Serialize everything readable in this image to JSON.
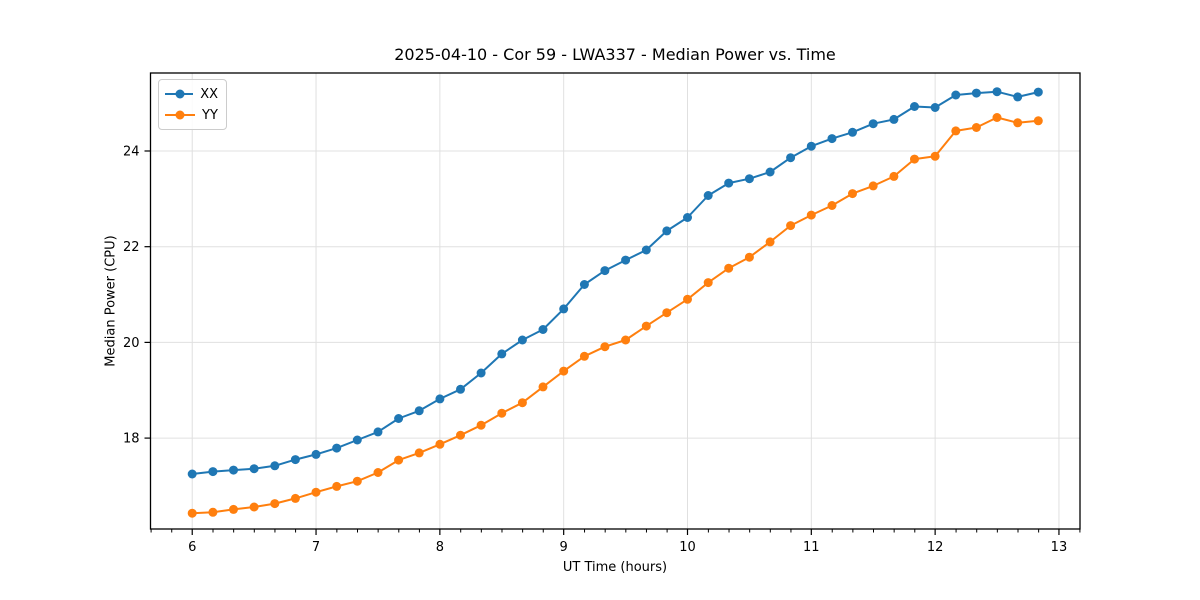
{
  "chart_data": {
    "type": "line",
    "title": "2025-04-10 - Cor 59 - LWA337 - Median Power vs. Time",
    "xlabel": "UT Time (hours)",
    "ylabel": "Median Power (CPU)",
    "xlim": [
      5.663,
      13.17
    ],
    "ylim": [
      16.1,
      25.63
    ],
    "xticks": [
      6,
      7,
      8,
      9,
      10,
      11,
      12,
      13
    ],
    "yticks": [
      18,
      20,
      22,
      24
    ],
    "x_minor_interval": 0.1667,
    "grid": true,
    "grid_color": "#e0e0e0",
    "axis_color": "#000000",
    "background_color": "#ffffff",
    "legend_position": "upper-left",
    "marker": "circle",
    "x": [
      6.0,
      6.167,
      6.333,
      6.5,
      6.667,
      6.833,
      7.0,
      7.167,
      7.333,
      7.5,
      7.667,
      7.833,
      8.0,
      8.167,
      8.333,
      8.5,
      8.667,
      8.833,
      9.0,
      9.167,
      9.333,
      9.5,
      9.667,
      9.833,
      10.0,
      10.167,
      10.333,
      10.5,
      10.667,
      10.833,
      11.0,
      11.167,
      11.333,
      11.5,
      11.667,
      11.833,
      12.0,
      12.167,
      12.333,
      12.5,
      12.667,
      12.833
    ],
    "series": [
      {
        "name": "XX",
        "color": "#1f77b4",
        "values": [
          17.25,
          17.3,
          17.33,
          17.36,
          17.42,
          17.55,
          17.66,
          17.79,
          17.96,
          18.13,
          18.41,
          18.57,
          18.82,
          19.02,
          19.36,
          19.76,
          20.05,
          20.27,
          20.7,
          21.21,
          21.5,
          21.72,
          21.93,
          22.33,
          22.61,
          23.07,
          23.33,
          23.42,
          23.56,
          23.86,
          24.1,
          24.26,
          24.39,
          24.57,
          24.66,
          24.93,
          24.91,
          25.17,
          25.21,
          25.24,
          25.13,
          25.23
        ]
      },
      {
        "name": "YY",
        "color": "#ff7f0e",
        "values": [
          16.43,
          16.45,
          16.51,
          16.56,
          16.63,
          16.74,
          16.87,
          16.99,
          17.1,
          17.28,
          17.54,
          17.69,
          17.87,
          18.06,
          18.27,
          18.52,
          18.74,
          19.07,
          19.4,
          19.71,
          19.91,
          20.05,
          20.34,
          20.62,
          20.9,
          21.25,
          21.55,
          21.78,
          22.1,
          22.44,
          22.66,
          22.86,
          23.11,
          23.27,
          23.47,
          23.83,
          23.89,
          24.42,
          24.49,
          24.7,
          24.59,
          24.63
        ]
      }
    ]
  }
}
